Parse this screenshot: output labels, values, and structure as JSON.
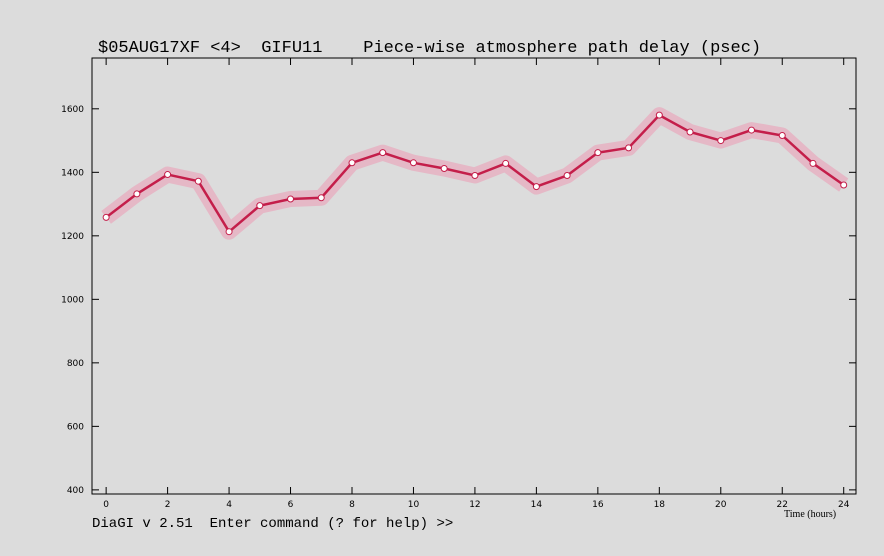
{
  "chart_data": {
    "type": "line",
    "title": "$05AUG17XF <4>  GIFU11    Piece-wise atmosphere path delay (psec)",
    "x_label": "Time (hours)",
    "prompt": "DiaGI v 2.51  Enter command (? for help) >>",
    "x": [
      0,
      1,
      2,
      3,
      4,
      5,
      6,
      7,
      8,
      9,
      10,
      11,
      12,
      13,
      14,
      15,
      16,
      17,
      18,
      19,
      20,
      21,
      22,
      23,
      24
    ],
    "values": [
      1258,
      1332,
      1393,
      1372,
      1213,
      1295,
      1316,
      1320,
      1430,
      1462,
      1430,
      1412,
      1390,
      1428,
      1355,
      1390,
      1462,
      1477,
      1580,
      1527,
      1500,
      1533,
      1516,
      1428,
      1360
    ],
    "color": "#c41e4a",
    "band_color": "#e8a8bc",
    "xlim": [
      -0.46,
      24.4
    ],
    "ylim": [
      387,
      1760
    ],
    "xticks": [
      0,
      2,
      4,
      6,
      8,
      10,
      12,
      14,
      16,
      18,
      20,
      22,
      24
    ],
    "yticks": [
      400,
      600,
      800,
      1000,
      1200,
      1400,
      1600
    ]
  }
}
